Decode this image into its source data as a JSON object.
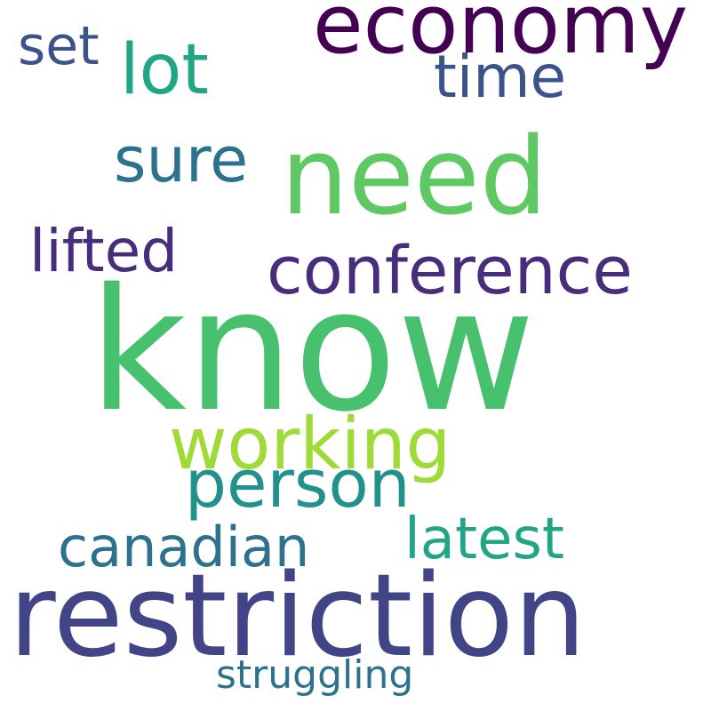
{
  "words": {
    "economy": {
      "text": "economy",
      "color": "#440154"
    },
    "set": {
      "text": "set",
      "color": "#3b528b"
    },
    "lot": {
      "text": "lot",
      "color": "#21a685"
    },
    "time": {
      "text": "time",
      "color": "#3b528b"
    },
    "sure": {
      "text": "sure",
      "color": "#2c728e"
    },
    "need": {
      "text": "need",
      "color": "#5ec962"
    },
    "lifted": {
      "text": "lifted",
      "color": "#472d7b"
    },
    "conference": {
      "text": "conference",
      "color": "#472d7b"
    },
    "know": {
      "text": "know",
      "color": "#48c16e"
    },
    "working": {
      "text": "working",
      "color": "#a0da39"
    },
    "person": {
      "text": "person",
      "color": "#21918c"
    },
    "canadian": {
      "text": "canadian",
      "color": "#2c728e"
    },
    "latest": {
      "text": "latest",
      "color": "#21a685"
    },
    "restriction": {
      "text": "restriction",
      "color": "#414487"
    },
    "struggling": {
      "text": "struggling",
      "color": "#2c728e"
    }
  }
}
